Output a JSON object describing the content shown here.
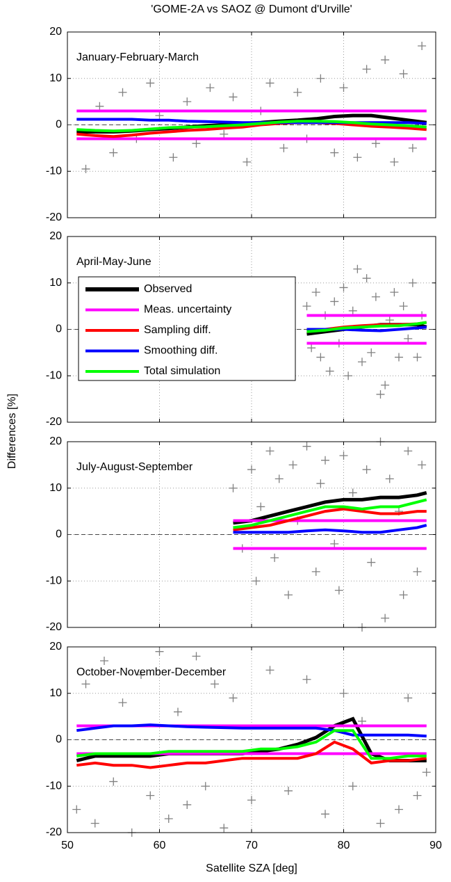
{
  "chart_data": [
    {
      "type": "line",
      "title": "'GOME-2A vs SAOZ @ Dumont d'Urville'",
      "annotation": "January-February-March",
      "xlim": [
        50,
        90
      ],
      "xticks": [
        50,
        60,
        70,
        80,
        90
      ],
      "ylim": [
        -20,
        20
      ],
      "yticks": [
        -20,
        -10,
        0,
        10,
        20
      ],
      "grid": true,
      "hline": 0,
      "points": {
        "color": "#808080",
        "x": [
          52,
          53.5,
          55,
          56,
          57.5,
          59,
          60,
          61.5,
          63,
          64,
          65.5,
          67,
          68,
          69.5,
          71,
          72,
          73.5,
          75,
          76,
          77.5,
          79,
          80,
          81.5,
          82.5,
          83.5,
          84.5,
          85.5,
          86.5,
          87.5,
          88.5
        ],
        "y": [
          -9.5,
          4,
          -6,
          7,
          -3,
          9,
          2,
          -7,
          5,
          -4,
          8,
          -2,
          6,
          -8,
          3,
          9,
          -5,
          7,
          -3,
          10,
          -6,
          8,
          -7,
          12,
          -4,
          14,
          -8,
          11,
          -5,
          17
        ]
      },
      "x": [
        51,
        53,
        55,
        57,
        59,
        61,
        63,
        65,
        67,
        69,
        71,
        73,
        75,
        77,
        79,
        81,
        83,
        85,
        87,
        89
      ],
      "series": [
        {
          "name": "Observed",
          "color": "#000000",
          "values": [
            -1.5,
            -1.5,
            -1.5,
            -1.3,
            -1,
            -0.8,
            -0.5,
            -0.2,
            0,
            0.3,
            0.5,
            0.8,
            1,
            1.3,
            1.8,
            2,
            2,
            1.5,
            1,
            0.5
          ]
        },
        {
          "name": "Meas. uncertainty",
          "color": "#ff00ff",
          "values": [
            3,
            3,
            3,
            3,
            3,
            3,
            3,
            3,
            3,
            3,
            3,
            3,
            3,
            3,
            3,
            3,
            3,
            3,
            3,
            3
          ],
          "values_lower": [
            -3,
            -3,
            -3,
            -3,
            -3,
            -3,
            -3,
            -3,
            -3,
            -3,
            -3,
            -3,
            -3,
            -3,
            -3,
            -3,
            -3,
            -3,
            -3,
            -3
          ]
        },
        {
          "name": "Sampling diff.",
          "color": "#ff0000",
          "values": [
            -2,
            -2.3,
            -2.5,
            -2.2,
            -1.8,
            -1.5,
            -1.2,
            -1,
            -0.7,
            -0.5,
            0,
            0.3,
            0.5,
            0.5,
            0.3,
            0,
            -0.3,
            -0.5,
            -0.7,
            -1
          ]
        },
        {
          "name": "Smoothing diff.",
          "color": "#0000ff",
          "values": [
            1.2,
            1.2,
            1.2,
            1.2,
            1,
            1,
            0.8,
            0.7,
            0.6,
            0.5,
            0.5,
            0.5,
            0.5,
            0.5,
            0.5,
            0.5,
            0.5,
            0.5,
            0.5,
            0.3
          ]
        },
        {
          "name": "Total simulation",
          "color": "#00ff00",
          "values": [
            -1,
            -1.2,
            -1.3,
            -1.2,
            -0.9,
            -0.6,
            -0.5,
            -0.4,
            -0.2,
            0,
            0.3,
            0.6,
            0.8,
            0.8,
            0.7,
            0.5,
            0.2,
            0,
            -0.2,
            -0.5
          ]
        }
      ]
    },
    {
      "type": "line",
      "annotation": "April-May-June",
      "y_label": "Differences [%]",
      "legend": "upper left",
      "xlim": [
        50,
        90
      ],
      "xticks": [
        50,
        60,
        70,
        80,
        90
      ],
      "ylim": [
        -20,
        20
      ],
      "yticks": [
        -20,
        -10,
        0,
        10,
        20
      ],
      "grid": true,
      "hline": 0,
      "points": {
        "color": "#808080",
        "x": [
          76,
          76.5,
          77,
          77.5,
          78,
          78.5,
          79,
          79.5,
          80,
          80.5,
          81,
          81.5,
          82,
          82.5,
          83,
          83.5,
          84,
          84.5,
          85,
          85.5,
          86,
          86.5,
          87,
          87.5,
          88,
          88.5
        ],
        "y": [
          5,
          -4,
          8,
          -6,
          3,
          -9,
          6,
          -3,
          9,
          -10,
          4,
          13,
          -7,
          11,
          -5,
          7,
          -14,
          -12,
          2,
          8,
          -6,
          5,
          -2,
          10,
          -6,
          3
        ]
      },
      "x": [
        76,
        78,
        80,
        82,
        84,
        86,
        88,
        89
      ],
      "series": [
        {
          "name": "Observed",
          "color": "#000000",
          "values": [
            -1,
            -0.5,
            0,
            0.5,
            1,
            1,
            1,
            0.5
          ]
        },
        {
          "name": "Meas. uncertainty",
          "color": "#ff00ff",
          "values": [
            3,
            3,
            3,
            3,
            3,
            3,
            3,
            3
          ],
          "values_lower": [
            -3,
            -3,
            -3,
            -3,
            -3,
            -3,
            -3,
            -3
          ]
        },
        {
          "name": "Sampling diff.",
          "color": "#ff0000",
          "values": [
            -0.5,
            0,
            0.5,
            0.8,
            1,
            1,
            1.2,
            1.5
          ]
        },
        {
          "name": "Smoothing diff.",
          "color": "#0000ff",
          "values": [
            0,
            0,
            0,
            -0.2,
            -0.3,
            0,
            0.3,
            0.5
          ]
        },
        {
          "name": "Total simulation",
          "color": "#00ff00",
          "values": [
            -0.5,
            -0.2,
            0.3,
            0.5,
            0.7,
            0.8,
            1.2,
            1.5
          ]
        }
      ]
    },
    {
      "type": "line",
      "annotation": "July-August-September",
      "xlim": [
        50,
        90
      ],
      "xticks": [
        50,
        60,
        70,
        80,
        90
      ],
      "ylim": [
        -20,
        20
      ],
      "yticks": [
        -20,
        -10,
        0,
        10,
        20
      ],
      "grid": true,
      "hline": 0,
      "points": {
        "color": "#808080",
        "x": [
          68,
          69,
          70,
          70.5,
          71,
          72,
          72.5,
          73,
          74,
          74.5,
          75,
          76,
          77,
          77.5,
          78,
          79,
          79.5,
          80,
          81,
          82,
          82.5,
          83,
          84,
          84.5,
          85,
          86,
          86.5,
          87,
          88,
          88.5
        ],
        "y": [
          10,
          -3,
          14,
          -10,
          6,
          18,
          -5,
          12,
          -13,
          15,
          3,
          19,
          -8,
          11,
          16,
          -2,
          -12,
          17,
          9,
          -20,
          14,
          -6,
          20,
          -18,
          12,
          5,
          -13,
          18,
          -8,
          15
        ]
      },
      "x": [
        68,
        70,
        72,
        74,
        76,
        78,
        80,
        82,
        84,
        86,
        88,
        89
      ],
      "series": [
        {
          "name": "Observed",
          "color": "#000000",
          "values": [
            2.5,
            3,
            4,
            5,
            6,
            7,
            7.5,
            7.5,
            8,
            8,
            8.5,
            9
          ]
        },
        {
          "name": "Meas. uncertainty",
          "color": "#ff00ff",
          "values": [
            3,
            3,
            3,
            3,
            3,
            3,
            3,
            3,
            3,
            3,
            3,
            3
          ],
          "values_lower": [
            -3,
            -3,
            -3,
            -3,
            -3,
            -3,
            -3,
            -3,
            -3,
            -3,
            -3,
            -3
          ]
        },
        {
          "name": "Sampling diff.",
          "color": "#ff0000",
          "values": [
            1,
            1.5,
            2,
            3,
            4,
            5,
            5.5,
            5,
            4.5,
            4.5,
            5,
            5
          ]
        },
        {
          "name": "Smoothing diff.",
          "color": "#0000ff",
          "values": [
            0.5,
            0.5,
            0.5,
            0.5,
            0.8,
            1,
            0.8,
            0.5,
            0.5,
            1,
            1.5,
            2
          ]
        },
        {
          "name": "Total simulation",
          "color": "#00ff00",
          "values": [
            1.5,
            2,
            3,
            4,
            5,
            6,
            6,
            5.5,
            6,
            6,
            7,
            7.5
          ]
        }
      ]
    },
    {
      "type": "line",
      "annotation": "October-November-December",
      "x_label": "Satellite SZA [deg]",
      "xlim": [
        50,
        90
      ],
      "xticks": [
        50,
        60,
        70,
        80,
        90
      ],
      "ylim": [
        -20,
        20
      ],
      "yticks": [
        -20,
        -10,
        0,
        10,
        20
      ],
      "grid": true,
      "hline": 0,
      "points": {
        "color": "#808080",
        "x": [
          51,
          52,
          53,
          54,
          55,
          56,
          57,
          58,
          59,
          60,
          61,
          62,
          63,
          64,
          65,
          66,
          67,
          68,
          70,
          72,
          74,
          76,
          78,
          80,
          81,
          82,
          84,
          86,
          87,
          88,
          89
        ],
        "y": [
          -15,
          12,
          -18,
          17,
          -9,
          8,
          -20,
          14,
          -12,
          19,
          -17,
          6,
          -14,
          18,
          -10,
          12,
          -19,
          9,
          -13,
          15,
          -11,
          13,
          -16,
          10,
          -10,
          4,
          -18,
          -15,
          9,
          -12,
          -7
        ]
      },
      "x": [
        51,
        53,
        55,
        57,
        59,
        61,
        63,
        65,
        67,
        69,
        71,
        73,
        75,
        77,
        79,
        81,
        83,
        85,
        87,
        89
      ],
      "series": [
        {
          "name": "Observed",
          "color": "#000000",
          "values": [
            -4.5,
            -3.5,
            -3.5,
            -3.5,
            -3.5,
            -3,
            -3,
            -3,
            -3,
            -3,
            -2.5,
            -2,
            -1,
            0.5,
            3,
            4.5,
            -3,
            -4.5,
            -4.5,
            -4.5
          ]
        },
        {
          "name": "Meas. uncertainty",
          "color": "#ff00ff",
          "values": [
            3,
            3,
            3,
            3,
            3,
            3,
            3,
            3,
            3,
            3,
            3,
            3,
            3,
            3,
            3,
            3,
            3,
            3,
            3,
            3
          ],
          "values_lower": [
            -3,
            -3,
            -3,
            -3,
            -3,
            -3,
            -3,
            -3,
            -3,
            -3,
            -3,
            -3,
            -3,
            -3,
            -3,
            -3,
            -3,
            -3,
            -3,
            -3
          ]
        },
        {
          "name": "Sampling diff.",
          "color": "#ff0000",
          "values": [
            -5.5,
            -5,
            -5.5,
            -5.5,
            -6,
            -5.5,
            -5,
            -5,
            -4.5,
            -4,
            -4,
            -4,
            -4,
            -3,
            -0.5,
            -2,
            -5,
            -4.5,
            -4.5,
            -4
          ]
        },
        {
          "name": "Smoothing diff.",
          "color": "#0000ff",
          "values": [
            2,
            2.5,
            3,
            3,
            3.2,
            3,
            2.8,
            2.7,
            2.6,
            2.5,
            2.5,
            2.5,
            2.5,
            2.5,
            2,
            1,
            1,
            1,
            1,
            0.8
          ]
        },
        {
          "name": "Total simulation",
          "color": "#00ff00",
          "values": [
            -3.5,
            -3,
            -3,
            -3,
            -3,
            -2.5,
            -2.5,
            -2.5,
            -2.5,
            -2.5,
            -2,
            -2,
            -1.5,
            -0.5,
            2,
            2,
            -4,
            -4,
            -3.5,
            -3.5
          ]
        }
      ]
    }
  ]
}
